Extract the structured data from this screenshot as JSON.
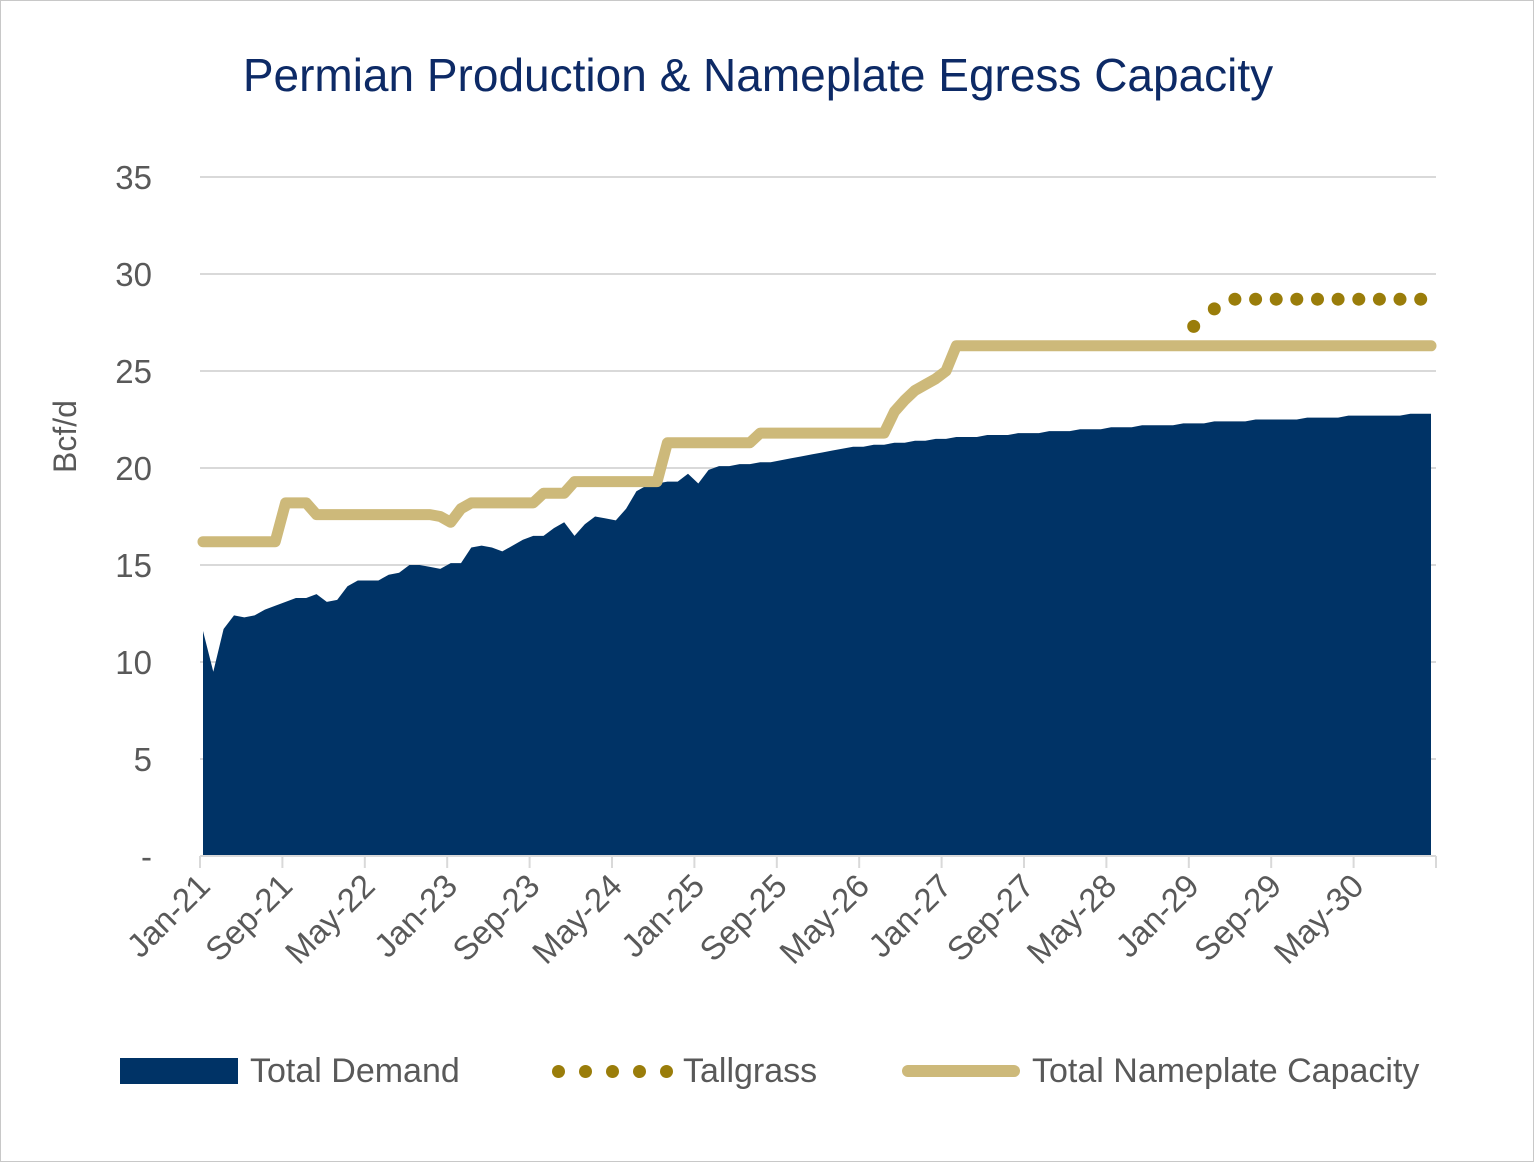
{
  "chart_data": {
    "type": "area",
    "title": "Permian Production & Nameplate Egress Capacity",
    "xlabel": "",
    "ylabel": "Bcf/d",
    "ylim": [
      0,
      35
    ],
    "yticks": [
      0,
      5,
      10,
      15,
      20,
      25,
      30,
      35
    ],
    "ytick_labels": [
      "-",
      "5",
      "10",
      "15",
      "20",
      "25",
      "30",
      "35"
    ],
    "xlim": [
      0,
      119
    ],
    "xticks": [
      0,
      8,
      16,
      24,
      32,
      40,
      48,
      56,
      64,
      72,
      80,
      88,
      96,
      104,
      112
    ],
    "xtick_labels": [
      "Jan-21",
      "Sep-21",
      "May-22",
      "Jan-23",
      "Sep-23",
      "May-24",
      "Jan-25",
      "Sep-25",
      "May-26",
      "Jan-27",
      "Sep-27",
      "May-28",
      "Jan-29",
      "Sep-29",
      "May-30"
    ],
    "grid": "horizontal",
    "legend_position": "bottom",
    "colors": {
      "demand": "#003366",
      "tallgrass": "#9a7d0a",
      "capacity": "#cdb97a",
      "title": "#0d2a66"
    },
    "series": [
      {
        "name": "Total Demand",
        "kind": "area",
        "points": [
          [
            0,
            11.6
          ],
          [
            1,
            9.5
          ],
          [
            2,
            11.7
          ],
          [
            3,
            12.4
          ],
          [
            4,
            12.3
          ],
          [
            5,
            12.4
          ],
          [
            6,
            12.7
          ],
          [
            7,
            12.9
          ],
          [
            8,
            13.1
          ],
          [
            9,
            13.3
          ],
          [
            10,
            13.3
          ],
          [
            11,
            13.5
          ],
          [
            12,
            13.1
          ],
          [
            13,
            13.2
          ],
          [
            14,
            13.9
          ],
          [
            15,
            14.2
          ],
          [
            16,
            14.2
          ],
          [
            17,
            14.2
          ],
          [
            18,
            14.5
          ],
          [
            19,
            14.6
          ],
          [
            20,
            15.0
          ],
          [
            21,
            15.0
          ],
          [
            22,
            14.9
          ],
          [
            23,
            14.8
          ],
          [
            24,
            15.1
          ],
          [
            25,
            15.1
          ],
          [
            26,
            15.9
          ],
          [
            27,
            16.0
          ],
          [
            28,
            15.9
          ],
          [
            29,
            15.7
          ],
          [
            30,
            16.0
          ],
          [
            31,
            16.3
          ],
          [
            32,
            16.5
          ],
          [
            33,
            16.5
          ],
          [
            34,
            16.9
          ],
          [
            35,
            17.2
          ],
          [
            36,
            16.5
          ],
          [
            37,
            17.1
          ],
          [
            38,
            17.5
          ],
          [
            39,
            17.4
          ],
          [
            40,
            17.3
          ],
          [
            41,
            17.9
          ],
          [
            42,
            18.8
          ],
          [
            43,
            19.1
          ],
          [
            44,
            19.2
          ],
          [
            45,
            19.3
          ],
          [
            46,
            19.3
          ],
          [
            47,
            19.7
          ],
          [
            48,
            19.2
          ],
          [
            49,
            19.9
          ],
          [
            50,
            20.1
          ],
          [
            51,
            20.1
          ],
          [
            52,
            20.2
          ],
          [
            53,
            20.2
          ],
          [
            54,
            20.3
          ],
          [
            55,
            20.3
          ],
          [
            56,
            20.4
          ],
          [
            57,
            20.5
          ],
          [
            58,
            20.6
          ],
          [
            59,
            20.7
          ],
          [
            60,
            20.8
          ],
          [
            61,
            20.9
          ],
          [
            62,
            21.0
          ],
          [
            63,
            21.1
          ],
          [
            64,
            21.1
          ],
          [
            65,
            21.2
          ],
          [
            66,
            21.2
          ],
          [
            67,
            21.3
          ],
          [
            68,
            21.3
          ],
          [
            69,
            21.4
          ],
          [
            70,
            21.4
          ],
          [
            71,
            21.5
          ],
          [
            72,
            21.5
          ],
          [
            73,
            21.6
          ],
          [
            74,
            21.6
          ],
          [
            75,
            21.6
          ],
          [
            76,
            21.7
          ],
          [
            77,
            21.7
          ],
          [
            78,
            21.7
          ],
          [
            79,
            21.8
          ],
          [
            80,
            21.8
          ],
          [
            81,
            21.8
          ],
          [
            82,
            21.9
          ],
          [
            83,
            21.9
          ],
          [
            84,
            21.9
          ],
          [
            85,
            22.0
          ],
          [
            86,
            22.0
          ],
          [
            87,
            22.0
          ],
          [
            88,
            22.1
          ],
          [
            89,
            22.1
          ],
          [
            90,
            22.1
          ],
          [
            91,
            22.2
          ],
          [
            92,
            22.2
          ],
          [
            93,
            22.2
          ],
          [
            94,
            22.2
          ],
          [
            95,
            22.3
          ],
          [
            96,
            22.3
          ],
          [
            97,
            22.3
          ],
          [
            98,
            22.4
          ],
          [
            99,
            22.4
          ],
          [
            100,
            22.4
          ],
          [
            101,
            22.4
          ],
          [
            102,
            22.5
          ],
          [
            103,
            22.5
          ],
          [
            104,
            22.5
          ],
          [
            105,
            22.5
          ],
          [
            106,
            22.5
          ],
          [
            107,
            22.6
          ],
          [
            108,
            22.6
          ],
          [
            109,
            22.6
          ],
          [
            110,
            22.6
          ],
          [
            111,
            22.7
          ],
          [
            112,
            22.7
          ],
          [
            113,
            22.7
          ],
          [
            114,
            22.7
          ],
          [
            115,
            22.7
          ],
          [
            116,
            22.7
          ],
          [
            117,
            22.8
          ],
          [
            118,
            22.8
          ],
          [
            119,
            22.8
          ]
        ]
      },
      {
        "name": "Tallgrass",
        "kind": "dotted",
        "points": [
          [
            96,
            27.3
          ],
          [
            98,
            28.2
          ],
          [
            100,
            28.7
          ],
          [
            102,
            28.7
          ],
          [
            104,
            28.7
          ],
          [
            106,
            28.7
          ],
          [
            108,
            28.7
          ],
          [
            110,
            28.7
          ],
          [
            112,
            28.7
          ],
          [
            114,
            28.7
          ],
          [
            116,
            28.7
          ],
          [
            118,
            28.7
          ]
        ]
      },
      {
        "name": "Total Nameplate Capacity",
        "kind": "line",
        "points": [
          [
            0,
            16.2
          ],
          [
            7,
            16.2
          ],
          [
            8,
            18.2
          ],
          [
            10,
            18.2
          ],
          [
            11,
            17.6
          ],
          [
            22,
            17.6
          ],
          [
            23,
            17.5
          ],
          [
            24,
            17.2
          ],
          [
            25,
            17.9
          ],
          [
            26,
            18.2
          ],
          [
            32,
            18.2
          ],
          [
            33,
            18.7
          ],
          [
            35,
            18.7
          ],
          [
            36,
            19.3
          ],
          [
            44,
            19.3
          ],
          [
            45,
            21.3
          ],
          [
            53,
            21.3
          ],
          [
            54,
            21.8
          ],
          [
            66,
            21.8
          ],
          [
            67,
            22.9
          ],
          [
            68,
            23.5
          ],
          [
            69,
            24.0
          ],
          [
            70,
            24.3
          ],
          [
            71,
            24.6
          ],
          [
            72,
            25.0
          ],
          [
            73,
            26.3
          ],
          [
            119,
            26.3
          ]
        ]
      }
    ]
  },
  "legend": {
    "total_demand": "Total Demand",
    "tallgrass": "Tallgrass",
    "total_nameplate_capacity": "Total Nameplate Capacity"
  }
}
